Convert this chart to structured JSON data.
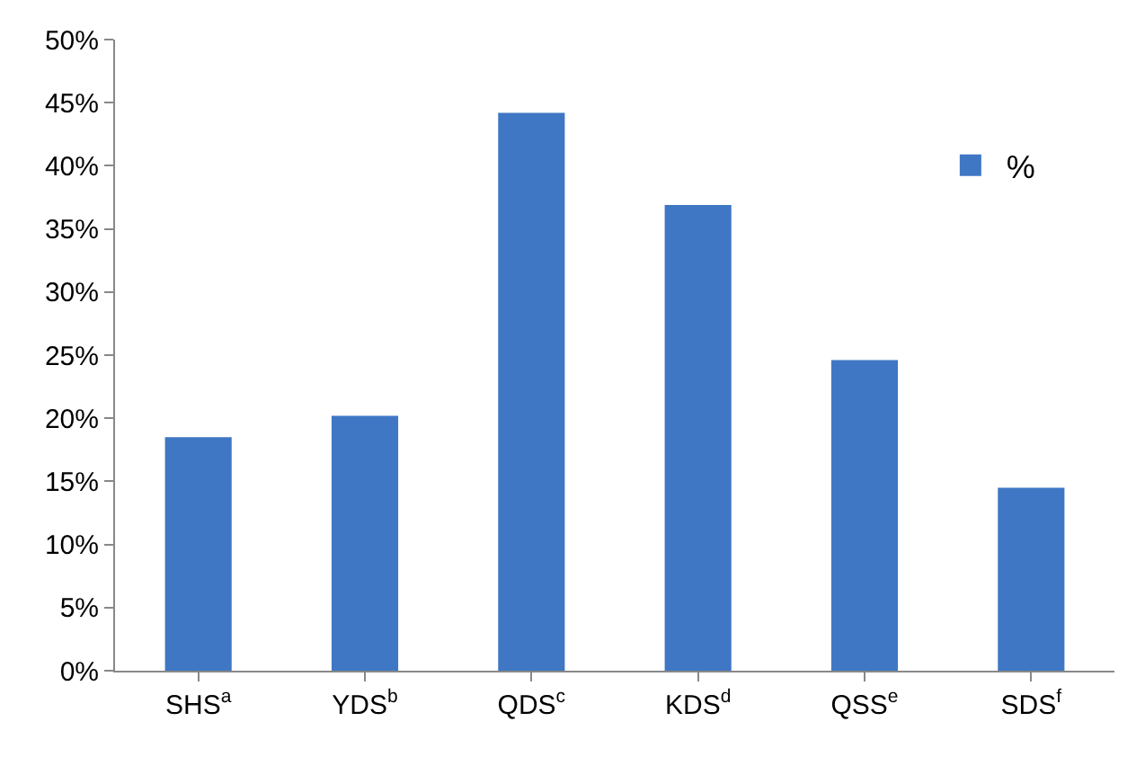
{
  "chart_data": {
    "type": "bar",
    "categories": [
      "SHS$^{a}$",
      "YDS$^{b}$",
      "QDS$^{c}$",
      "KDS$^{d}$",
      "QSS$^{e}$",
      "SDS$^{f}$"
    ],
    "series": [
      {
        "name": "%",
        "color": "#3f77c4",
        "values": [
          18.5,
          20.2,
          44.2,
          36.9,
          24.6,
          14.5
        ]
      }
    ],
    "ylim": [
      0,
      50
    ],
    "yticks": [
      {
        "value": 0,
        "label": "0%"
      },
      {
        "value": 5,
        "label": "5%"
      },
      {
        "value": 10,
        "label": "10%"
      },
      {
        "value": 15,
        "label": "15%"
      },
      {
        "value": 20,
        "label": "20%"
      },
      {
        "value": 25,
        "label": "25%"
      },
      {
        "value": 30,
        "label": "30%"
      },
      {
        "value": 35,
        "label": "35%"
      },
      {
        "value": 40,
        "label": "40%"
      },
      {
        "value": 45,
        "label": "45%"
      },
      {
        "value": 50,
        "label": "50%"
      }
    ],
    "grid": false,
    "legend": "top right"
  }
}
